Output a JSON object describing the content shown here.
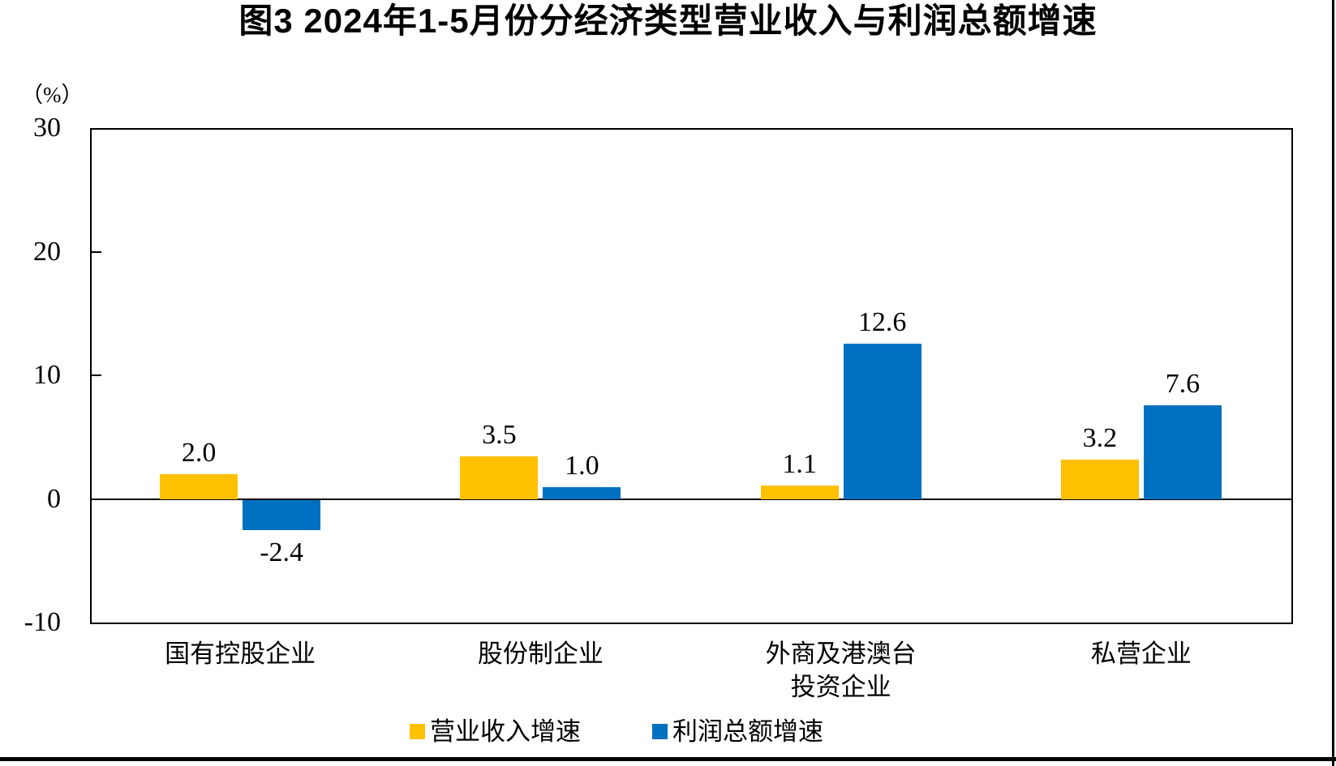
{
  "chart_data": {
    "type": "bar",
    "title": "图3 2024年1-5月份分经济类型营业收入与利润总额增速",
    "unit_label": "（%）",
    "categories": [
      "国有控股企业",
      "股份制企业",
      "外商及港澳台\n投资企业",
      "私营企业"
    ],
    "series": [
      {
        "name": "营业收入增速",
        "color": "#FFC000",
        "values": [
          2.0,
          3.5,
          1.1,
          3.2
        ]
      },
      {
        "name": "利润总额增速",
        "color": "#0070C0",
        "values": [
          -2.4,
          1.0,
          12.6,
          7.6
        ]
      }
    ],
    "ylim": [
      -10,
      30
    ],
    "yticks": [
      30,
      20,
      10,
      0,
      -10
    ],
    "grid": false,
    "legend_position": "bottom",
    "value_label_format": "one-decimal",
    "axis_color": "#000000"
  }
}
